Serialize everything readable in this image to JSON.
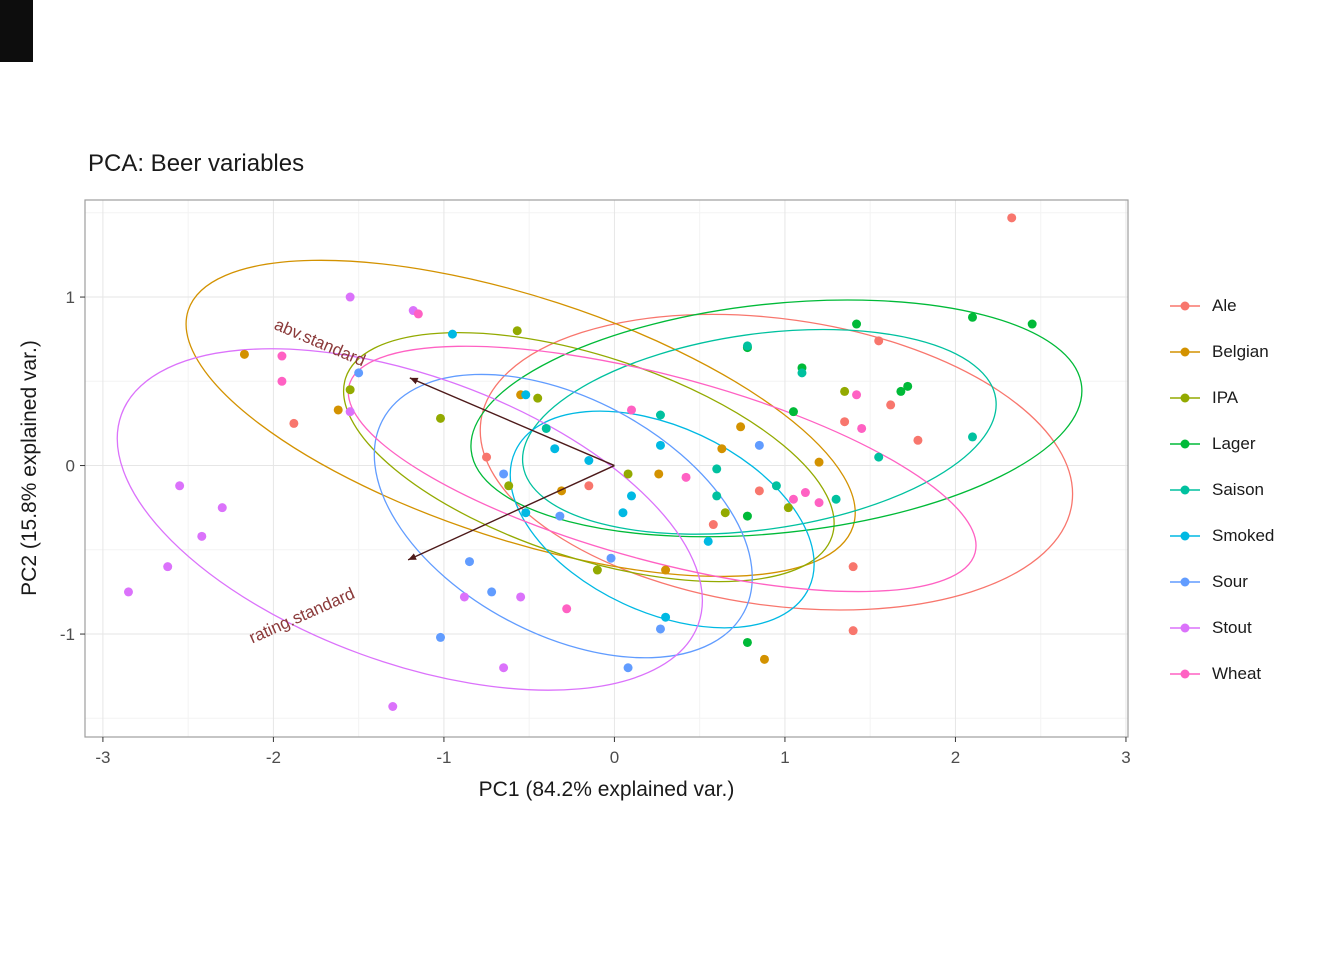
{
  "page": {
    "background": "#ffffff",
    "artifact_color": "#0d0d0d"
  },
  "chart_data": {
    "type": "scatter",
    "title": "PCA: Beer variables",
    "xlabel": "PC1 (84.2% explained var.)",
    "ylabel": "PC2 (15.8% explained var.)",
    "xlim": [
      -3.105,
      3.012
    ],
    "ylim": [
      -1.611,
      1.576
    ],
    "x_ticks": [
      -3,
      -2,
      -1,
      0,
      1,
      2,
      3
    ],
    "y_ticks": [
      -1,
      0,
      1
    ],
    "x_minor_ticks": [
      -2.5,
      -1.5,
      -0.5,
      0.5,
      1.5,
      2.5
    ],
    "y_minor_ticks": [
      -1.5,
      -0.5,
      0.5,
      1.5
    ],
    "grid": "on",
    "legend_position": "right",
    "colors": {
      "grid_major": "#e6e6e6",
      "grid_minor": "#f3f3f3",
      "panel_border": "#9e9e9e",
      "tick_text": "#4d4d4d",
      "tick_mark": "#333333",
      "arrow": "#4d1a1a",
      "loading_label": "#8b3a3a",
      "title_text": "#1a1a1a"
    },
    "loadings": [
      {
        "label": "abv.standard",
        "x": -1.2,
        "y": 0.52,
        "label_x": -1.74,
        "label_y": 0.7,
        "label_angle": -23
      },
      {
        "label": "rating.standard",
        "x": -1.21,
        "y": -0.56,
        "label_x": -1.82,
        "label_y": -0.92,
        "label_angle": 24
      }
    ],
    "series": [
      {
        "name": "Ale",
        "color": "#F8766D",
        "ellipse": {
          "cx": 0.95,
          "cy": 0.02,
          "rx": 1.75,
          "ry": 0.85,
          "angle": -8
        },
        "points": [
          [
            2.33,
            1.47
          ],
          [
            1.55,
            0.74
          ],
          [
            1.62,
            0.36
          ],
          [
            1.78,
            0.15
          ],
          [
            1.35,
            0.26
          ],
          [
            0.85,
            -0.15
          ],
          [
            -0.75,
            0.05
          ],
          [
            -0.15,
            -0.12
          ],
          [
            1.4,
            -0.6
          ],
          [
            1.4,
            -0.98
          ],
          [
            -1.88,
            0.25
          ],
          [
            0.58,
            -0.35
          ]
        ]
      },
      {
        "name": "Belgian",
        "color": "#D39200",
        "ellipse": {
          "cx": -0.55,
          "cy": 0.28,
          "rx": 2.05,
          "ry": 0.72,
          "angle": -18
        },
        "points": [
          [
            -2.17,
            0.66
          ],
          [
            -1.62,
            0.33
          ],
          [
            -0.55,
            0.42
          ],
          [
            -0.31,
            -0.15
          ],
          [
            0.26,
            -0.05
          ],
          [
            0.63,
            0.1
          ],
          [
            0.74,
            0.23
          ],
          [
            1.2,
            0.02
          ],
          [
            0.88,
            -1.15
          ],
          [
            0.3,
            -0.62
          ]
        ]
      },
      {
        "name": "IPA",
        "color": "#93AA00",
        "ellipse": {
          "cx": -0.15,
          "cy": 0.05,
          "rx": 1.5,
          "ry": 0.6,
          "angle": -18
        },
        "points": [
          [
            -1.55,
            0.45
          ],
          [
            -1.02,
            0.28
          ],
          [
            -0.57,
            0.8
          ],
          [
            -0.45,
            0.4
          ],
          [
            -0.62,
            -0.12
          ],
          [
            0.08,
            -0.05
          ],
          [
            0.65,
            -0.28
          ],
          [
            1.35,
            0.44
          ],
          [
            -0.1,
            -0.62
          ],
          [
            1.02,
            -0.25
          ]
        ]
      },
      {
        "name": "Lager",
        "color": "#00BA38",
        "ellipse": {
          "cx": 0.95,
          "cy": 0.28,
          "rx": 1.8,
          "ry": 0.68,
          "angle": 6
        },
        "points": [
          [
            2.45,
            0.84
          ],
          [
            2.1,
            0.88
          ],
          [
            1.72,
            0.47
          ],
          [
            1.68,
            0.44
          ],
          [
            1.42,
            0.84
          ],
          [
            1.1,
            0.58
          ],
          [
            0.78,
            0.7
          ],
          [
            1.05,
            0.32
          ],
          [
            0.78,
            -0.3
          ],
          [
            0.78,
            -1.05
          ]
        ]
      },
      {
        "name": "Saison",
        "color": "#00C19F",
        "ellipse": {
          "cx": 0.85,
          "cy": 0.2,
          "rx": 1.4,
          "ry": 0.58,
          "angle": 8
        },
        "points": [
          [
            0.78,
            0.71
          ],
          [
            1.1,
            0.55
          ],
          [
            0.6,
            -0.02
          ],
          [
            0.6,
            -0.18
          ],
          [
            1.3,
            -0.2
          ],
          [
            2.1,
            0.17
          ],
          [
            1.55,
            0.05
          ],
          [
            0.95,
            -0.12
          ],
          [
            0.27,
            0.3
          ],
          [
            -0.4,
            0.22
          ]
        ]
      },
      {
        "name": "Smoked",
        "color": "#00B9E3",
        "ellipse": {
          "cx": 0.28,
          "cy": -0.32,
          "rx": 0.95,
          "ry": 0.55,
          "angle": -25
        },
        "points": [
          [
            -0.95,
            0.78
          ],
          [
            -0.52,
            0.42
          ],
          [
            -0.35,
            0.1
          ],
          [
            -0.15,
            0.03
          ],
          [
            0.27,
            0.12
          ],
          [
            0.05,
            -0.28
          ],
          [
            0.3,
            -0.9
          ],
          [
            0.55,
            -0.45
          ],
          [
            -0.52,
            -0.28
          ],
          [
            0.1,
            -0.18
          ]
        ]
      },
      {
        "name": "Sour",
        "color": "#619CFF",
        "ellipse": {
          "cx": -0.3,
          "cy": -0.3,
          "rx": 1.2,
          "ry": 0.7,
          "angle": -28
        },
        "points": [
          [
            -1.5,
            0.55
          ],
          [
            -0.65,
            -0.05
          ],
          [
            -0.85,
            -0.57
          ],
          [
            -0.72,
            -0.75
          ],
          [
            -0.02,
            -0.55
          ],
          [
            -0.32,
            -0.3
          ],
          [
            0.27,
            -0.97
          ],
          [
            0.08,
            -1.2
          ],
          [
            -1.02,
            -1.02
          ],
          [
            0.85,
            0.12
          ]
        ]
      },
      {
        "name": "Stout",
        "color": "#DB72FB",
        "ellipse": {
          "cx": -1.2,
          "cy": -0.32,
          "rx": 1.8,
          "ry": 0.85,
          "angle": -20
        },
        "points": [
          [
            -2.85,
            -0.75
          ],
          [
            -2.62,
            -0.6
          ],
          [
            -2.55,
            -0.12
          ],
          [
            -2.3,
            -0.25
          ],
          [
            -2.42,
            -0.42
          ],
          [
            -1.55,
            1.0
          ],
          [
            -1.18,
            0.92
          ],
          [
            -1.55,
            0.32
          ],
          [
            -0.88,
            -0.78
          ],
          [
            -0.55,
            -0.78
          ],
          [
            -1.3,
            -1.43
          ],
          [
            -0.65,
            -1.2
          ]
        ]
      },
      {
        "name": "Wheat",
        "color": "#FF61C3",
        "ellipse": {
          "cx": 0.28,
          "cy": -0.02,
          "rx": 1.9,
          "ry": 0.55,
          "angle": -15
        },
        "points": [
          [
            -1.95,
            0.65
          ],
          [
            -1.95,
            0.5
          ],
          [
            -1.15,
            0.9
          ],
          [
            0.1,
            0.33
          ],
          [
            0.42,
            -0.07
          ],
          [
            1.05,
            -0.2
          ],
          [
            1.12,
            -0.16
          ],
          [
            1.2,
            -0.22
          ],
          [
            1.42,
            0.42
          ],
          [
            1.45,
            0.22
          ],
          [
            -0.28,
            -0.85
          ]
        ]
      }
    ]
  }
}
